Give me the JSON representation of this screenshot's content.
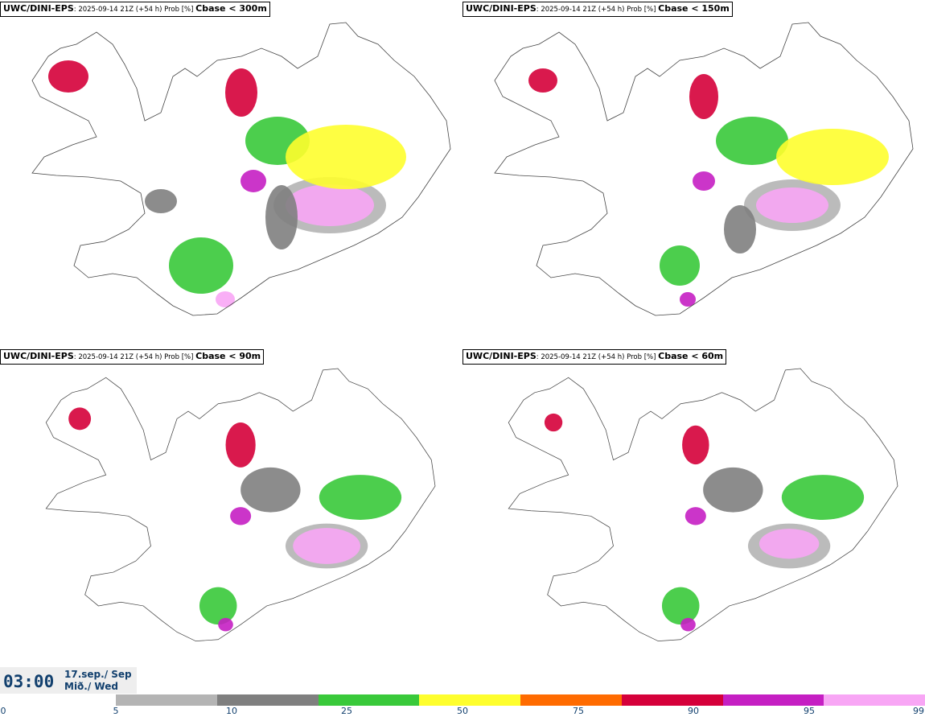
{
  "panels": [
    {
      "model": "UWC/DINI-EPS",
      "meta": ": 2025-09-14 21Z (+54 h) Prob [%] ",
      "param": "Cbase < 300m"
    },
    {
      "model": "UWC/DINI-EPS",
      "meta": ": 2025-09-14 21Z (+54 h) Prob [%] ",
      "param": "Cbase < 150m"
    },
    {
      "model": "UWC/DINI-EPS",
      "meta": ": 2025-09-14 21Z (+54 h) Prob [%] ",
      "param": "Cbase < 90m"
    },
    {
      "model": "UWC/DINI-EPS",
      "meta": ": 2025-09-14 21Z (+54 h) Prob [%] ",
      "param": "Cbase < 60m"
    }
  ],
  "time": {
    "hour": "03:00",
    "date": "17.sep./ Sep",
    "day": "Mið./ Wed"
  },
  "colorbar": {
    "ticks": [
      "0",
      "5",
      "10",
      "25",
      "50",
      "75",
      "90",
      "95",
      "99"
    ],
    "colors": [
      "#ffffff",
      "#b4b4b4",
      "#7f7f7f",
      "#39c93a",
      "#fefe2e",
      "#ff6b00",
      "#d5003a",
      "#c51fc3",
      "#f8a6f5"
    ]
  }
}
